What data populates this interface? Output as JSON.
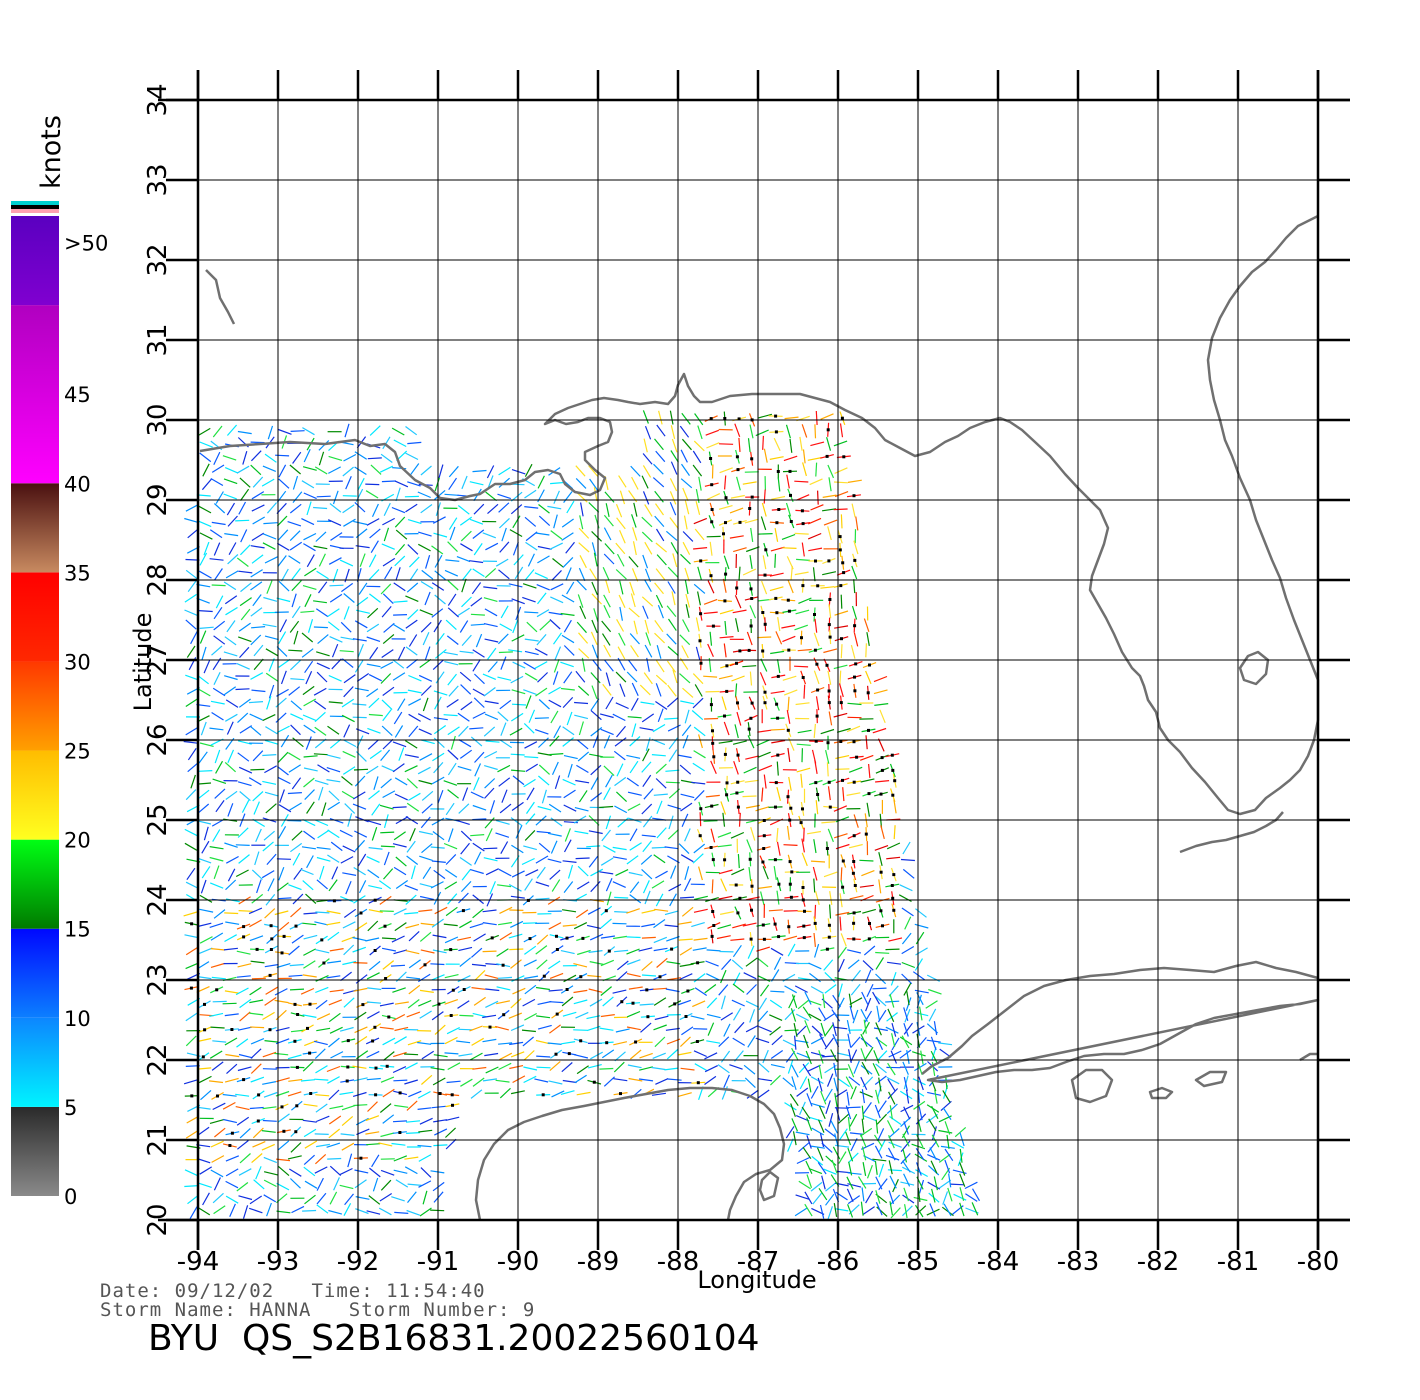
{
  "map": {
    "lon_range": [
      -94,
      -80
    ],
    "lat_range": [
      20,
      34
    ],
    "lon_ticks": [
      "-94",
      "-93",
      "-92",
      "-91",
      "-90",
      "-89",
      "-88",
      "-87",
      "-86",
      "-85",
      "-84",
      "-83",
      "-82",
      "-81",
      "-80"
    ],
    "lat_ticks": [
      "20",
      "21",
      "22",
      "23",
      "24",
      "25",
      "26",
      "27",
      "28",
      "29",
      "30",
      "31",
      "32",
      "33",
      "34"
    ],
    "xlabel": "Longitude",
    "ylabel": "Latitude",
    "grid": true,
    "coastline_color": "#707070"
  },
  "colorbar": {
    "unit": "knots",
    "labels": [
      "0",
      "5",
      "10",
      "15",
      "20",
      "25",
      "30",
      "35",
      "40",
      "45",
      ">50"
    ],
    "stops": [
      {
        "from": 0,
        "to": 5,
        "top": "#2a2a2a",
        "bottom": "#8a8a8a"
      },
      {
        "from": 5,
        "to": 10,
        "top": "#0c86ff",
        "bottom": "#00f4ff"
      },
      {
        "from": 10,
        "to": 15,
        "top": "#0008ff",
        "bottom": "#0c7fff"
      },
      {
        "from": 15,
        "to": 20,
        "top": "#00ff14",
        "bottom": "#007a00"
      },
      {
        "from": 20,
        "to": 25,
        "top": "#ffbc00",
        "bottom": "#ffff20"
      },
      {
        "from": 25,
        "to": 30,
        "top": "#ff3800",
        "bottom": "#ffa000"
      },
      {
        "from": 30,
        "to": 35,
        "top": "#ff0000",
        "bottom": "#ff2800"
      },
      {
        "from": 35,
        "to": 40,
        "top": "#4a1010",
        "bottom": "#c88a60"
      },
      {
        "from": 40,
        "to": 50,
        "top": "#b000c0",
        "bottom": "#ff00ff"
      },
      {
        "from": 50,
        "to": 55,
        "top": "#5a00c0",
        "bottom": "#8000d0"
      }
    ],
    "cap_colors": [
      "#00d0d0",
      "#000000",
      "#ffa0b0"
    ]
  },
  "footer": {
    "line1": "Date: 09/12/02   Time: 11:54:40",
    "line2": "Storm Name: HANNA   Storm Number: 9",
    "product_id": "BYU  QS_S2B16831.20022560104"
  }
}
